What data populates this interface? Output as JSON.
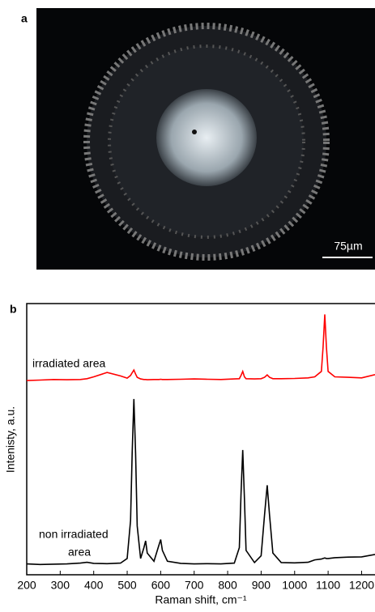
{
  "panel_a": {
    "label": "a",
    "scale_bar": "75µm"
  },
  "chart_data": {
    "type": "line",
    "panel_label": "b",
    "xlabel": "Raman shift, cm⁻¹",
    "ylabel": "Intenisty, a.u.",
    "annotations": [
      "irradiated area",
      "non irradiated",
      "area"
    ],
    "x": [
      200,
      240,
      280,
      320,
      360,
      380,
      400,
      440,
      480,
      500,
      510,
      515,
      520,
      525,
      530,
      540,
      550,
      555,
      560,
      580,
      595,
      600,
      605,
      620,
      660,
      700,
      740,
      780,
      820,
      835,
      840,
      845,
      850,
      855,
      880,
      900,
      910,
      918,
      925,
      935,
      960,
      1000,
      1040,
      1060,
      1080,
      1085,
      1090,
      1095,
      1100,
      1120,
      1160,
      1200,
      1240
    ],
    "series": [
      {
        "color": "#ff0000",
        "values": [
          71.6,
          71.8,
          72,
          71.9,
          72,
          72.3,
          73,
          74.6,
          73.3,
          72.5,
          73.5,
          74.5,
          75.5,
          74,
          72.8,
          72.2,
          72,
          72,
          71.9,
          72,
          72,
          72.1,
          72,
          72,
          72.1,
          72.2,
          72.1,
          72,
          72.2,
          72.3,
          73.5,
          75,
          73,
          72.3,
          72.2,
          72.3,
          72.8,
          73.7,
          72.8,
          72.3,
          72.3,
          72.4,
          72.6,
          73,
          75,
          84,
          96,
          84,
          75,
          73,
          72.8,
          72.6,
          73.8
        ]
      },
      {
        "color": "#000000",
        "values": [
          4,
          3.8,
          3.9,
          4,
          4.3,
          4.6,
          4.2,
          4.1,
          4.3,
          6,
          20,
          45,
          64.8,
          45,
          18,
          6,
          10,
          12.5,
          8,
          5,
          11,
          13,
          9,
          5,
          4.2,
          4,
          4.1,
          4,
          4.3,
          10,
          30,
          46,
          28,
          9,
          4.5,
          7,
          22,
          33,
          22,
          8,
          4.5,
          4.4,
          4.6,
          5.5,
          5.8,
          6,
          6.2,
          6,
          6,
          6.3,
          6.5,
          6.6,
          7.5
        ]
      }
    ],
    "xlim": [
      200,
      1240
    ],
    "ylim": [
      0,
      100
    ],
    "xticks": [
      200,
      300,
      400,
      500,
      600,
      700,
      800,
      900,
      1000,
      1100,
      1200
    ]
  }
}
